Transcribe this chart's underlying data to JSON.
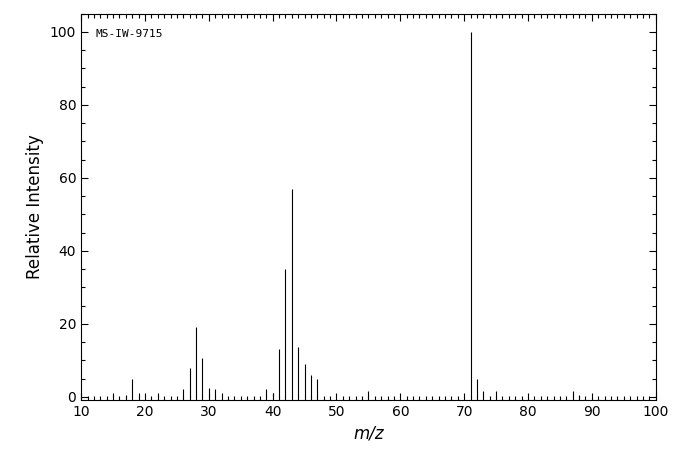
{
  "title": "MS-IW-9715",
  "xlabel": "m/z",
  "ylabel": "Relative Intensity",
  "xlim": [
    10,
    100
  ],
  "ylim": [
    -1,
    105
  ],
  "xticks": [
    10,
    20,
    30,
    40,
    50,
    60,
    70,
    80,
    90,
    100
  ],
  "yticks": [
    0,
    20,
    40,
    60,
    80,
    100
  ],
  "peaks": [
    {
      "mz": 15,
      "intensity": 1.0
    },
    {
      "mz": 17,
      "intensity": 0.5
    },
    {
      "mz": 18,
      "intensity": 5.0
    },
    {
      "mz": 19,
      "intensity": 1.0
    },
    {
      "mz": 22,
      "intensity": 1.0
    },
    {
      "mz": 26,
      "intensity": 2.0
    },
    {
      "mz": 27,
      "intensity": 8.0
    },
    {
      "mz": 28,
      "intensity": 19.0
    },
    {
      "mz": 29,
      "intensity": 10.5
    },
    {
      "mz": 30,
      "intensity": 2.5
    },
    {
      "mz": 31,
      "intensity": 2.0
    },
    {
      "mz": 32,
      "intensity": 1.0
    },
    {
      "mz": 39,
      "intensity": 2.0
    },
    {
      "mz": 40,
      "intensity": 1.0
    },
    {
      "mz": 41,
      "intensity": 13.0
    },
    {
      "mz": 42,
      "intensity": 35.0
    },
    {
      "mz": 43,
      "intensity": 57.0
    },
    {
      "mz": 44,
      "intensity": 13.5
    },
    {
      "mz": 45,
      "intensity": 9.0
    },
    {
      "mz": 46,
      "intensity": 6.0
    },
    {
      "mz": 47,
      "intensity": 5.0
    },
    {
      "mz": 55,
      "intensity": 1.5
    },
    {
      "mz": 71,
      "intensity": 100.0
    },
    {
      "mz": 72,
      "intensity": 5.0
    },
    {
      "mz": 73,
      "intensity": 1.5
    },
    {
      "mz": 75,
      "intensity": 1.5
    },
    {
      "mz": 87,
      "intensity": 1.5
    },
    {
      "mz": 88,
      "intensity": 0.5
    }
  ],
  "bar_color": "#000000",
  "background_color": "#ffffff",
  "label_fontsize": 12,
  "title_fontsize": 8,
  "tick_fontsize": 10,
  "figsize": [
    6.76,
    4.55
  ],
  "dpi": 100
}
